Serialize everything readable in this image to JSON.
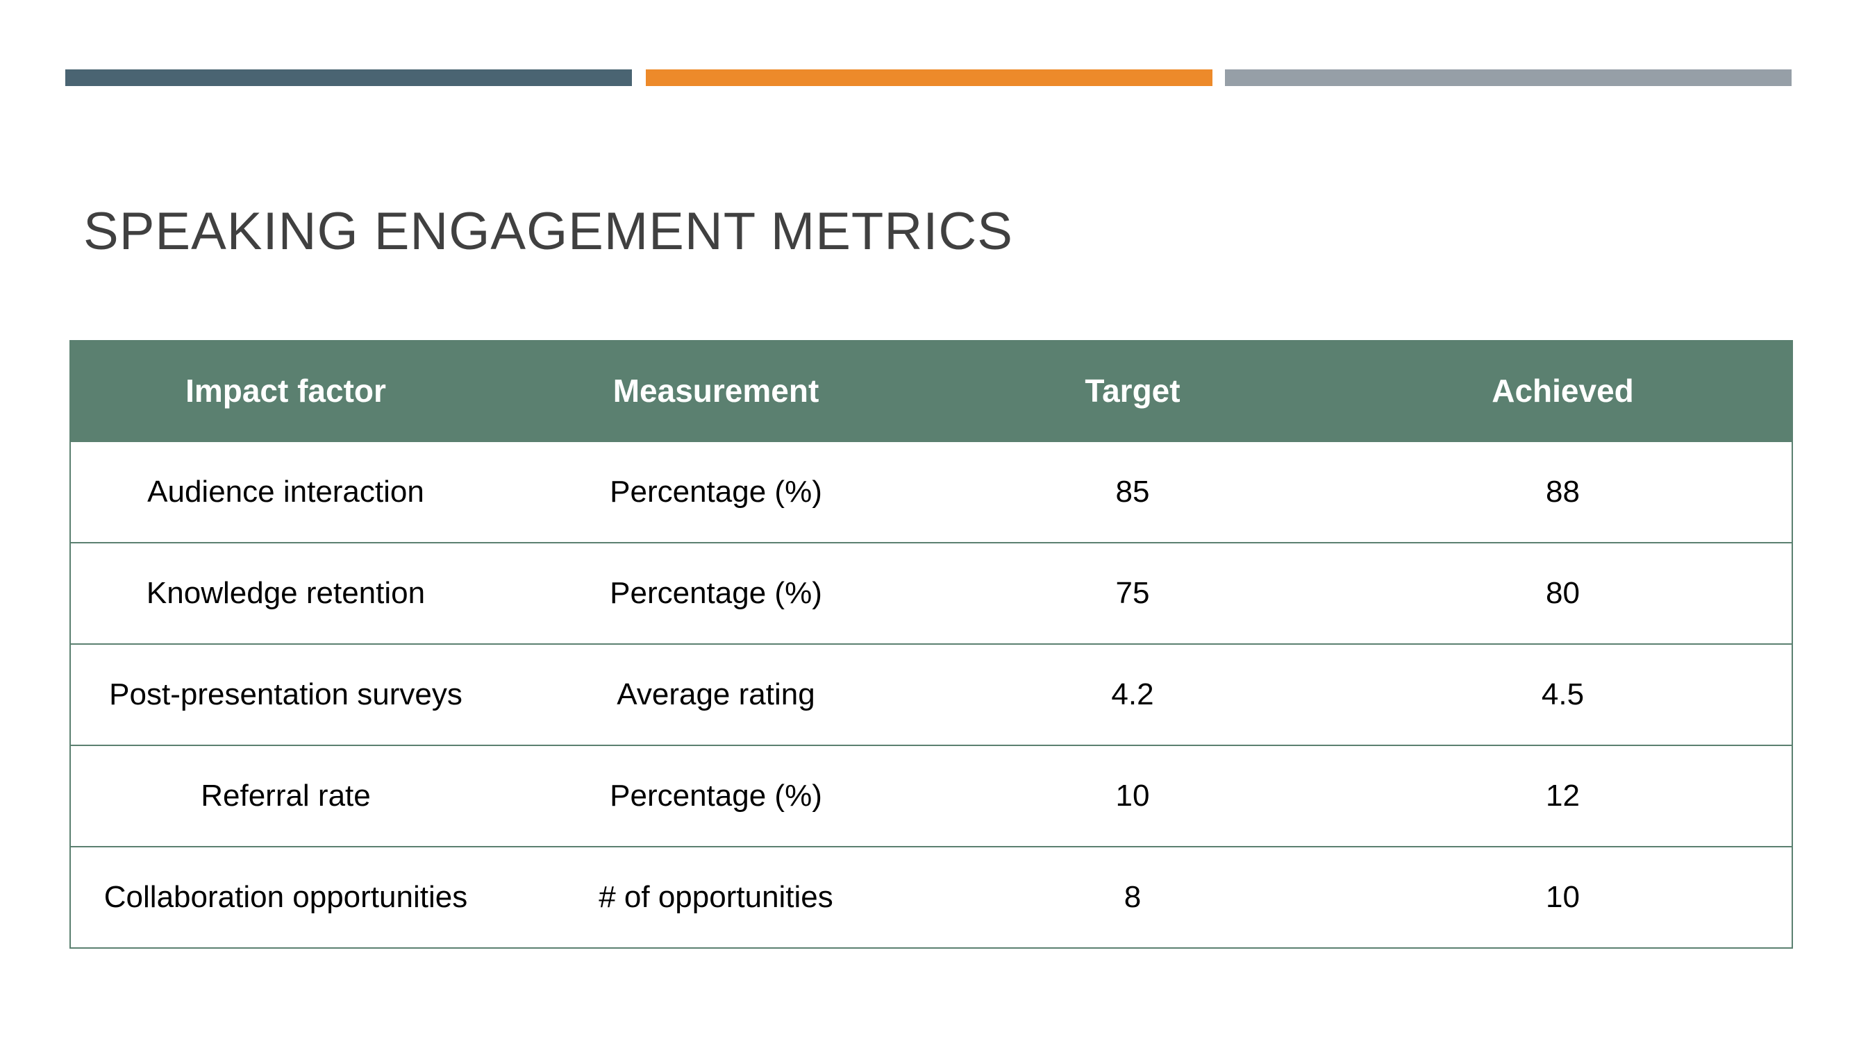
{
  "colors": {
    "bar_1": "#4a6472",
    "bar_2": "#ed8a2a",
    "bar_3": "#969fa7",
    "table_header": "#5b8070",
    "title": "#404040"
  },
  "slide": {
    "title": "SPEAKING ENGAGEMENT METRICS"
  },
  "table": {
    "headers": [
      "Impact factor",
      "Measurement",
      "Target",
      "Achieved"
    ],
    "rows": [
      [
        "Audience interaction",
        "Percentage (%)",
        "85",
        "88"
      ],
      [
        "Knowledge retention",
        "Percentage (%)",
        "75",
        "80"
      ],
      [
        "Post-presentation surveys",
        "Average rating",
        "4.2",
        "4.5"
      ],
      [
        "Referral rate",
        "Percentage (%)",
        "10",
        "12"
      ],
      [
        "Collaboration opportunities",
        "# of opportunities",
        "8",
        "10"
      ]
    ]
  }
}
